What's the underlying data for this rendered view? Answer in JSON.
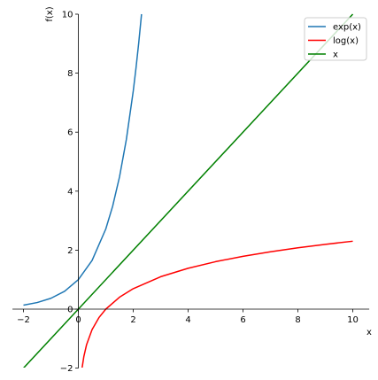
{
  "chart_data": {
    "type": "line",
    "xlabel": "x",
    "ylabel": "f(x)",
    "xlim": [
      -2.4,
      10.6
    ],
    "ylim": [
      -2,
      10
    ],
    "x_ticks": [
      -2,
      0,
      2,
      4,
      6,
      8,
      10
    ],
    "y_ticks": [
      -2,
      0,
      2,
      4,
      6,
      8,
      10
    ],
    "grid": false,
    "legend_position": "top-right",
    "series": [
      {
        "name": "exp(x)",
        "color": "#1f77b4",
        "x": [
          -2.0,
          -1.5,
          -1.0,
          -0.5,
          0.0,
          0.5,
          1.0,
          1.25,
          1.5,
          1.75,
          2.0,
          2.1,
          2.2,
          2.3026
        ],
        "y": [
          0.135,
          0.223,
          0.368,
          0.607,
          1.0,
          1.649,
          2.718,
          3.49,
          4.482,
          5.755,
          7.389,
          8.166,
          9.025,
          10.0
        ]
      },
      {
        "name": "log(x)",
        "color": "#ff0000",
        "x": [
          0.1353,
          0.2,
          0.3,
          0.5,
          0.75,
          1.0,
          1.5,
          2.0,
          3.0,
          4.0,
          5.0,
          6.0,
          7.0,
          8.0,
          9.0,
          10.0
        ],
        "y": [
          -2.0,
          -1.609,
          -1.204,
          -0.693,
          -0.288,
          0.0,
          0.405,
          0.693,
          1.099,
          1.386,
          1.609,
          1.792,
          1.946,
          2.079,
          2.197,
          2.303
        ]
      },
      {
        "name": "x",
        "color": "#008000",
        "x": [
          -2,
          10
        ],
        "y": [
          -2,
          10
        ]
      }
    ]
  }
}
